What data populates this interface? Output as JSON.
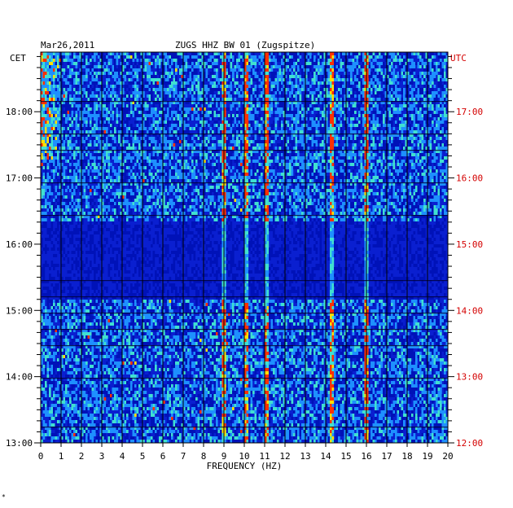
{
  "chart_data": {
    "type": "heatmap",
    "title": "ZUGS HHZ BW 01 (Zugspitze)",
    "date": "Mar26,2011",
    "xlabel": "FREQUENCY (HZ)",
    "x_ticks": [
      0,
      1,
      2,
      3,
      4,
      5,
      6,
      7,
      8,
      9,
      10,
      11,
      12,
      13,
      14,
      15,
      16,
      17,
      18,
      19,
      20
    ],
    "xlim": [
      0,
      20
    ],
    "left_axis": {
      "timezone": "CET",
      "ticks": [
        "18:00",
        "17:00",
        "16:00",
        "15:00",
        "14:00",
        "13:00"
      ],
      "range_hours": [
        13.0,
        18.9
      ]
    },
    "right_axis": {
      "timezone": "UTC",
      "ticks": [
        "17:00",
        "16:00",
        "15:00",
        "14:00",
        "13:00",
        "12:00"
      ],
      "range_hours": [
        12.0,
        17.9
      ]
    },
    "colors": {
      "background": "#0a1fd0",
      "low": "#0012b8",
      "mid": "#1e90ff",
      "high": "#40e0d0",
      "peak": "#ffe000",
      "max": "#ff3000"
    },
    "notable_lines_hz": [
      9.0,
      10.1,
      11.1,
      14.3,
      16.0
    ],
    "quiet_period_cet": [
      "15:10",
      "16:20"
    ]
  },
  "footer": {
    "mark": "*"
  }
}
